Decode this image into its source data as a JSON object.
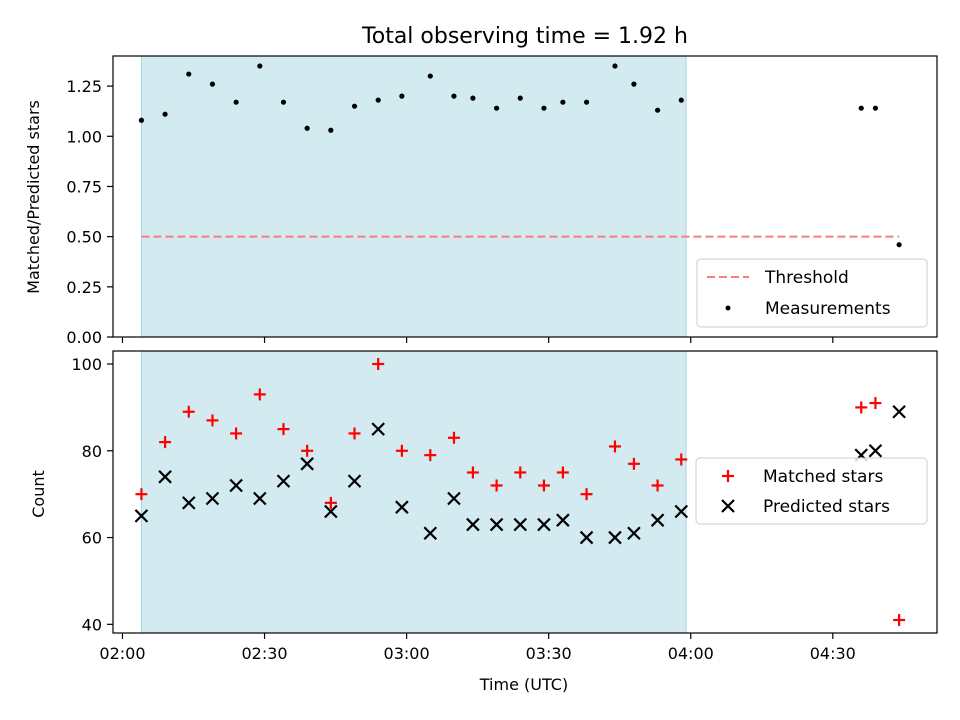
{
  "chart_data": [
    {
      "type": "scatter",
      "title": "Total observing time = 1.92 h",
      "xlabel": "",
      "ylabel": "Matched/Predicted stars",
      "ylim": [
        0,
        1.4
      ],
      "yticks": [
        "0.00",
        "0.25",
        "0.50",
        "0.75",
        "1.00",
        "1.25"
      ],
      "legend_position": "lower-right",
      "grid": false,
      "shaded_interval": [
        "02:04",
        "03:59"
      ],
      "shade_color": "#d3ebf0",
      "threshold": {
        "name": "Threshold",
        "value": 0.5,
        "x_start": "02:04",
        "x_end": "04:44",
        "color": "#f77f7f"
      },
      "series": [
        {
          "name": "Measurements",
          "color": "#000000",
          "x": [
            "02:04",
            "02:09",
            "02:14",
            "02:19",
            "02:24",
            "02:29",
            "02:34",
            "02:39",
            "02:44",
            "02:49",
            "02:54",
            "02:59",
            "03:05",
            "03:10",
            "03:14",
            "03:19",
            "03:24",
            "03:29",
            "03:33",
            "03:38",
            "03:44",
            "03:48",
            "03:53",
            "03:58",
            "04:36",
            "04:39",
            "04:44"
          ],
          "y": [
            1.08,
            1.11,
            1.31,
            1.26,
            1.17,
            1.35,
            1.17,
            1.04,
            1.03,
            1.15,
            1.18,
            1.2,
            1.3,
            1.2,
            1.19,
            1.14,
            1.19,
            1.14,
            1.17,
            1.17,
            1.35,
            1.26,
            1.13,
            1.18,
            1.14,
            1.14,
            0.46
          ]
        }
      ]
    },
    {
      "type": "scatter",
      "title": "",
      "xlabel": "Time (UTC)",
      "ylabel": "Count",
      "xlim": [
        "01:58",
        "04:52"
      ],
      "xticks": [
        "02:00",
        "02:30",
        "03:00",
        "03:30",
        "04:00",
        "04:30"
      ],
      "ylim": [
        38,
        103
      ],
      "yticks": [
        "40",
        "60",
        "80",
        "100"
      ],
      "legend_position": "center-right",
      "grid": false,
      "shaded_interval": [
        "02:04",
        "03:59"
      ],
      "series": [
        {
          "name": "Matched stars",
          "marker": "+",
          "color": "#ff0000",
          "x": [
            "02:04",
            "02:09",
            "02:14",
            "02:19",
            "02:24",
            "02:29",
            "02:34",
            "02:39",
            "02:44",
            "02:49",
            "02:54",
            "02:59",
            "03:05",
            "03:10",
            "03:14",
            "03:19",
            "03:24",
            "03:29",
            "03:33",
            "03:38",
            "03:44",
            "03:48",
            "03:53",
            "03:58",
            "04:36",
            "04:39",
            "04:44"
          ],
          "y": [
            70,
            82,
            89,
            87,
            84,
            93,
            85,
            80,
            68,
            84,
            100,
            80,
            79,
            83,
            75,
            72,
            75,
            72,
            75,
            70,
            81,
            77,
            72,
            78,
            90,
            91,
            41
          ]
        },
        {
          "name": "Predicted stars",
          "marker": "x",
          "color": "#000000",
          "x": [
            "02:04",
            "02:09",
            "02:14",
            "02:19",
            "02:24",
            "02:29",
            "02:34",
            "02:39",
            "02:44",
            "02:49",
            "02:54",
            "02:59",
            "03:05",
            "03:10",
            "03:14",
            "03:19",
            "03:24",
            "03:29",
            "03:33",
            "03:38",
            "03:44",
            "03:48",
            "03:53",
            "03:58",
            "04:36",
            "04:39",
            "04:44"
          ],
          "y": [
            65,
            74,
            68,
            69,
            72,
            69,
            73,
            77,
            66,
            73,
            85,
            67,
            61,
            69,
            63,
            63,
            63,
            63,
            64,
            60,
            60,
            61,
            64,
            66,
            79,
            80,
            89
          ]
        }
      ]
    }
  ]
}
